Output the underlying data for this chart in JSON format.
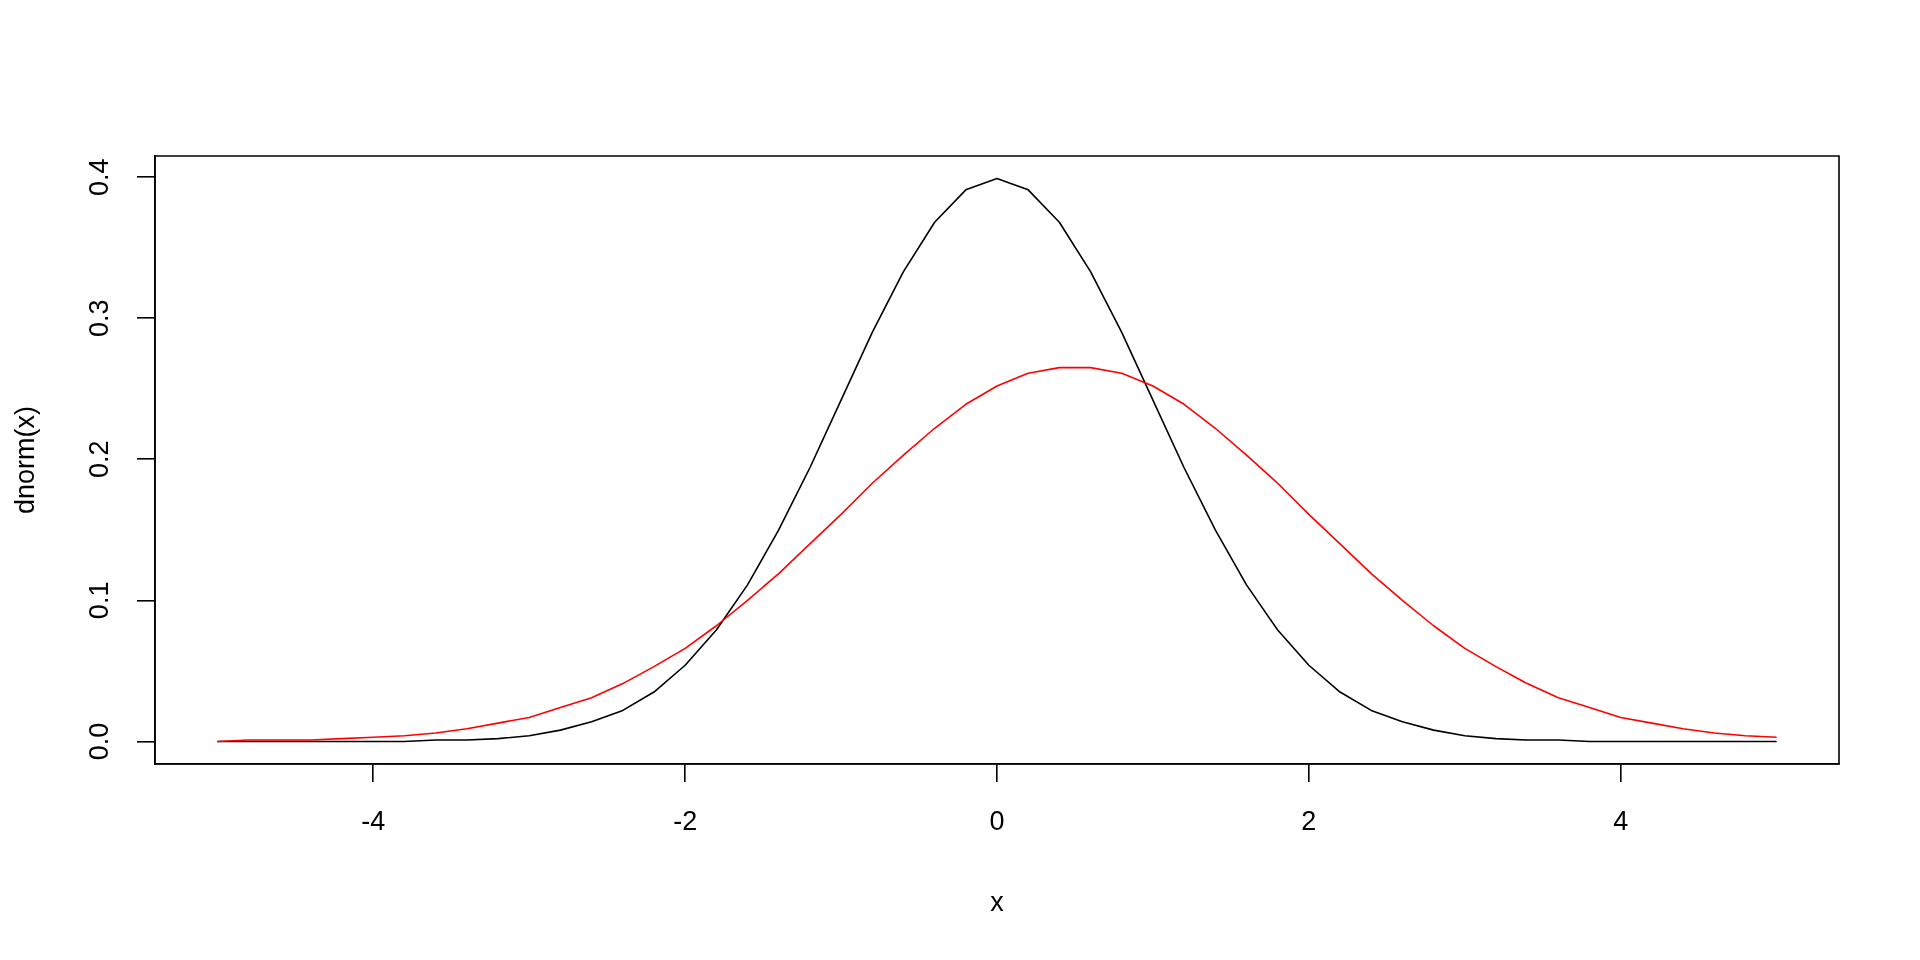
{
  "chart_data": {
    "type": "line",
    "xlabel": "x",
    "ylabel": "dnorm(x)",
    "x": [
      -5,
      -4.8,
      -4.6,
      -4.4,
      -4.2,
      -4,
      -3.8,
      -3.6,
      -3.4,
      -3.2,
      -3,
      -2.8,
      -2.6,
      -2.4,
      -2.2,
      -2,
      -1.8,
      -1.6,
      -1.4,
      -1.2,
      -1,
      -0.8,
      -0.6,
      -0.4,
      -0.2,
      0,
      0.2,
      0.4,
      0.6,
      0.8,
      1,
      1.2,
      1.4,
      1.6,
      1.8,
      2,
      2.2,
      2.4,
      2.6,
      2.8,
      3,
      3.2,
      3.4,
      3.6,
      3.8,
      4,
      4.2,
      4.4,
      4.6,
      4.8,
      5
    ],
    "series": [
      {
        "color": "#000000",
        "values": [
          0,
          0,
          0,
          0,
          0,
          0,
          0,
          0.001,
          0.001,
          0.002,
          0.004,
          0.008,
          0.014,
          0.022,
          0.035,
          0.054,
          0.079,
          0.111,
          0.15,
          0.194,
          0.242,
          0.29,
          0.333,
          0.368,
          0.391,
          0.399,
          0.391,
          0.368,
          0.333,
          0.29,
          0.242,
          0.194,
          0.15,
          0.111,
          0.079,
          0.054,
          0.035,
          0.022,
          0.014,
          0.008,
          0.004,
          0.002,
          0.001,
          0.001,
          0,
          0,
          0,
          0,
          0,
          0,
          0
        ]
      },
      {
        "color": "#ff0000",
        "values": [
          0,
          0.001,
          0.001,
          0.001,
          0.002,
          0.003,
          0.004,
          0.006,
          0.009,
          0.013,
          0.017,
          0.024,
          0.031,
          0.041,
          0.053,
          0.066,
          0.082,
          0.1,
          0.119,
          0.14,
          0.161,
          0.183,
          0.203,
          0.222,
          0.239,
          0.252,
          0.261,
          0.265,
          0.265,
          0.261,
          0.252,
          0.239,
          0.222,
          0.203,
          0.183,
          0.161,
          0.14,
          0.119,
          0.1,
          0.082,
          0.066,
          0.053,
          0.041,
          0.031,
          0.024,
          0.017,
          0.013,
          0.009,
          0.006,
          0.004,
          0.003
        ]
      }
    ],
    "xlim": [
      -5.4,
      5.4
    ],
    "ylim": [
      -0.016,
      0.415
    ],
    "xticks": [
      -4,
      -2,
      0,
      2,
      4
    ],
    "yticks": [
      {
        "value": 0,
        "label": "0.0"
      },
      0.1,
      0.2,
      0.3,
      0.4
    ],
    "grid": false,
    "legend": false,
    "marker": "none",
    "line_style": "solid"
  }
}
